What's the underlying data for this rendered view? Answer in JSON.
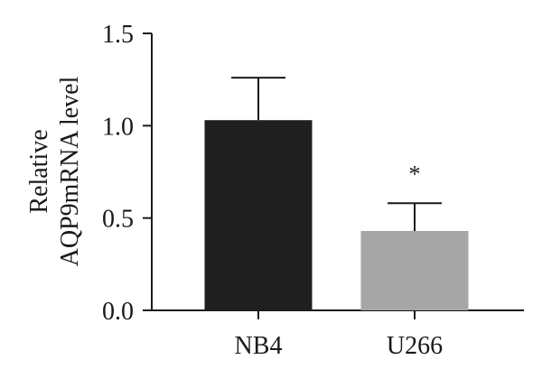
{
  "chart_data": {
    "type": "bar",
    "title": "",
    "xlabel": "",
    "ylabel": [
      "Relative",
      "AQP9mRNA level"
    ],
    "categories": [
      "NB4",
      "U266"
    ],
    "values": [
      1.03,
      0.43
    ],
    "errors": [
      0.23,
      0.15
    ],
    "ylim": [
      0.0,
      1.5
    ],
    "yticks": [
      "0.0",
      "0.5",
      "1.0",
      "1.5"
    ],
    "bar_colors": [
      "#1f1f1f",
      "#a6a6a6"
    ],
    "annotations": [
      "",
      "*"
    ],
    "grid": false,
    "legend": "none"
  }
}
